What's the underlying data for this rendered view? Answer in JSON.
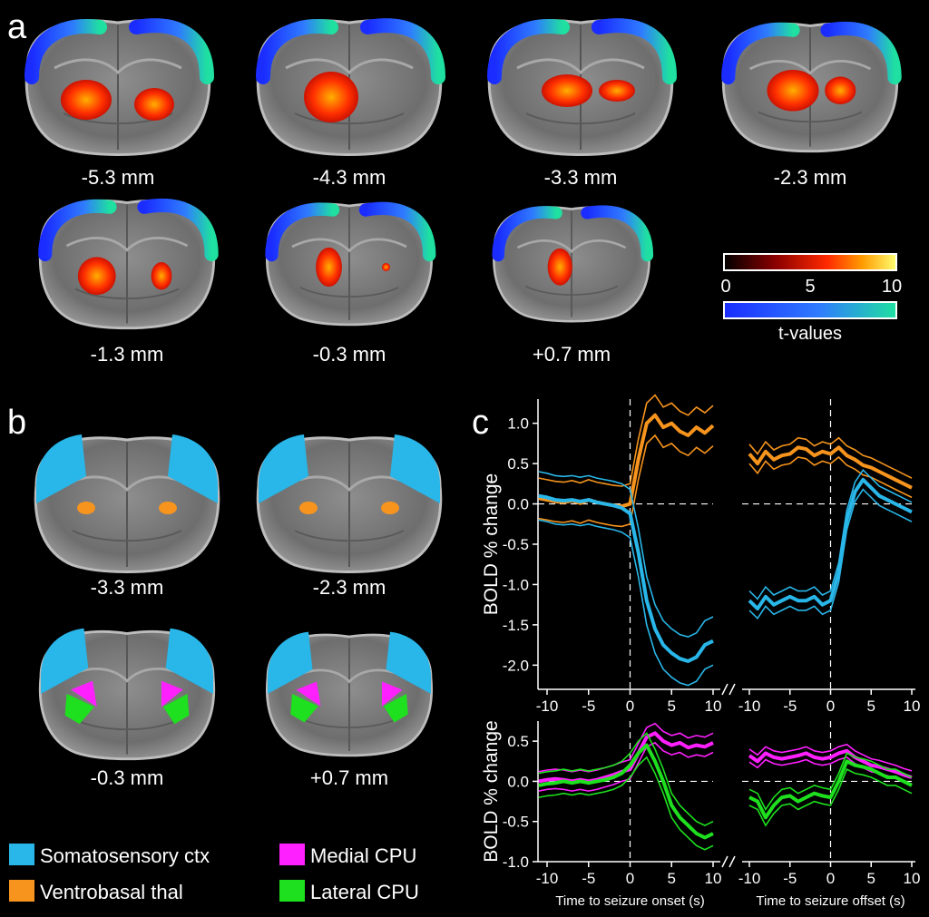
{
  "panel_a": {
    "letter": "a",
    "slices": [
      "-5.3 mm",
      "-4.3 mm",
      "-3.3 mm",
      "-2.3 mm",
      "-1.3 mm",
      "-0.3 mm",
      "+0.7 mm"
    ],
    "colorbar": {
      "ticks": [
        "0",
        "5",
        "10"
      ],
      "label": "t-values",
      "positive_colors": [
        "#000000",
        "#8b0000",
        "#ff2a00",
        "#ff9a00",
        "#ffff70"
      ],
      "negative_colors": [
        "#1a2cff",
        "#2f7bff",
        "#1fe0a0"
      ]
    }
  },
  "panel_b": {
    "letter": "b",
    "slices": [
      "-3.3 mm",
      "-2.3 mm",
      "-0.3 mm",
      "+0.7 mm"
    ],
    "legend": [
      {
        "label": "Somatosensory ctx",
        "color": "#29b6e8"
      },
      {
        "label": "Medial CPU",
        "color": "#ff20ff"
      },
      {
        "label": "Ventrobasal thal",
        "color": "#f7941d"
      },
      {
        "label": "Lateral CPU",
        "color": "#1ee01e"
      }
    ]
  },
  "panel_c": {
    "letter": "c"
  },
  "chart_data": [
    {
      "type": "line",
      "ylabel": "BOLD % change",
      "ylim": [
        -2.3,
        1.3
      ],
      "yticks": [
        "1.0",
        "0.5",
        "0.0",
        "-0.5",
        "-1.0",
        "-1.5",
        "-2.0"
      ],
      "xticks_left": [
        "-10",
        "-5",
        "0",
        "5",
        "10"
      ],
      "xticks_right": [
        "-10",
        "-5",
        "0",
        "5",
        "10"
      ],
      "x_left": [
        -11,
        -10,
        -9,
        -8,
        -7,
        -6,
        -5,
        -4,
        -3,
        -2,
        -1,
        0,
        1,
        2,
        3,
        4,
        5,
        6,
        7,
        8,
        9,
        10
      ],
      "x_right": [
        -10,
        -9,
        -8,
        -7,
        -6,
        -5,
        -4,
        -3,
        -2,
        -1,
        0,
        1,
        2,
        3,
        4,
        5,
        6,
        7,
        8,
        9,
        10
      ],
      "series": [
        {
          "color": "#f7941d",
          "left": [
            0.07,
            0.05,
            0.03,
            0.02,
            0.04,
            0.01,
            0.05,
            0.02,
            0.0,
            -0.02,
            -0.03,
            0.0,
            0.55,
            1.0,
            1.1,
            0.95,
            1.0,
            0.9,
            0.85,
            0.95,
            0.88,
            0.97
          ],
          "left_band": 0.25,
          "right": [
            0.62,
            0.5,
            0.65,
            0.55,
            0.6,
            0.62,
            0.7,
            0.68,
            0.6,
            0.65,
            0.62,
            0.7,
            0.6,
            0.55,
            0.48,
            0.45,
            0.4,
            0.35,
            0.3,
            0.25,
            0.2
          ],
          "right_band": 0.12
        },
        {
          "color": "#29b6e8",
          "left": [
            0.1,
            0.08,
            0.05,
            0.04,
            0.05,
            0.03,
            0.05,
            0.02,
            0.0,
            -0.02,
            -0.05,
            -0.12,
            -0.6,
            -1.2,
            -1.55,
            -1.75,
            -1.85,
            -1.92,
            -1.95,
            -1.9,
            -1.75,
            -1.7
          ],
          "left_band": 0.3,
          "right": [
            -1.2,
            -1.3,
            -1.15,
            -1.25,
            -1.2,
            -1.15,
            -1.2,
            -1.2,
            -1.15,
            -1.25,
            -1.2,
            -0.85,
            -0.2,
            0.15,
            0.3,
            0.2,
            0.1,
            0.05,
            0.0,
            -0.05,
            -0.1
          ],
          "right_band": 0.12
        }
      ]
    },
    {
      "type": "line",
      "ylabel": "BOLD % change",
      "ylim": [
        -1.0,
        0.75
      ],
      "yticks": [
        "0.5",
        "0.0",
        "-0.5",
        "-1.0"
      ],
      "xticks_left": [
        "-10",
        "-5",
        "0",
        "5",
        "10"
      ],
      "xticks_right": [
        "-10",
        "-5",
        "0",
        "5",
        "10"
      ],
      "xlabel_left": "Time to seizure onset (s)",
      "xlabel_right": "Time to seizure offset (s)",
      "x_left": [
        -11,
        -10,
        -9,
        -8,
        -7,
        -6,
        -5,
        -4,
        -3,
        -2,
        -1,
        0,
        1,
        2,
        3,
        4,
        5,
        6,
        7,
        8,
        9,
        10
      ],
      "x_right": [
        -10,
        -9,
        -8,
        -7,
        -6,
        -5,
        -4,
        -3,
        -2,
        -1,
        0,
        1,
        2,
        3,
        4,
        5,
        6,
        7,
        8,
        9,
        10
      ],
      "series": [
        {
          "color": "#ff20ff",
          "left": [
            0.0,
            0.02,
            0.03,
            0.02,
            0.0,
            0.02,
            0.0,
            0.02,
            0.05,
            0.08,
            0.12,
            0.15,
            0.35,
            0.55,
            0.6,
            0.5,
            0.45,
            0.48,
            0.42,
            0.45,
            0.43,
            0.48
          ],
          "left_band": 0.12,
          "right": [
            0.32,
            0.25,
            0.35,
            0.3,
            0.28,
            0.3,
            0.32,
            0.35,
            0.3,
            0.28,
            0.3,
            0.35,
            0.38,
            0.3,
            0.25,
            0.2,
            0.18,
            0.15,
            0.12,
            0.08,
            0.05
          ],
          "right_band": 0.08
        },
        {
          "color": "#1ee01e",
          "left": [
            -0.05,
            -0.03,
            -0.02,
            0.0,
            -0.02,
            0.0,
            -0.02,
            0.0,
            0.02,
            0.05,
            0.1,
            0.2,
            0.35,
            0.45,
            0.25,
            0.0,
            -0.3,
            -0.45,
            -0.55,
            -0.65,
            -0.7,
            -0.65
          ],
          "left_band": 0.15,
          "right": [
            -0.2,
            -0.25,
            -0.45,
            -0.3,
            -0.2,
            -0.18,
            -0.25,
            -0.2,
            -0.15,
            -0.18,
            -0.2,
            0.0,
            0.25,
            0.2,
            0.18,
            0.15,
            0.1,
            0.05,
            0.05,
            0.0,
            -0.05
          ],
          "right_band": 0.1
        }
      ]
    }
  ]
}
